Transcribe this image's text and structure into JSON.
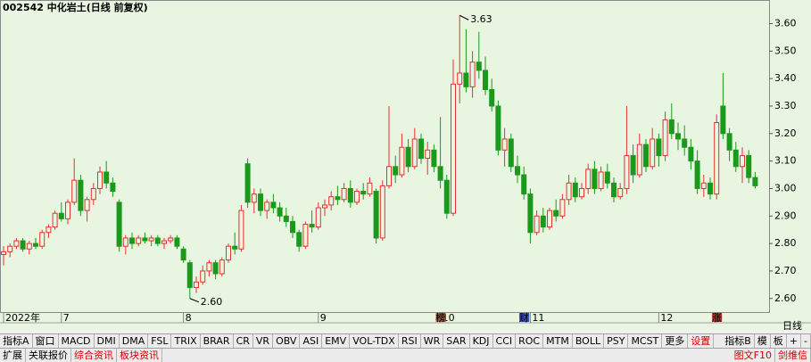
{
  "chart_data": {
    "type": "candlestick",
    "title": "002542 中化岩土(日线 前复权)",
    "period": "日线",
    "categories": [
      "2022年",
      null,
      null,
      null,
      null,
      null,
      null,
      null,
      null,
      "7",
      null,
      null,
      null,
      null,
      null,
      null,
      null,
      null,
      null,
      null,
      null,
      null,
      null,
      null,
      null,
      null,
      null,
      null,
      "8",
      null,
      null,
      null,
      null,
      null,
      null,
      null,
      null,
      null,
      null,
      null,
      null,
      null,
      null,
      null,
      null,
      null,
      null,
      null,
      null,
      "9",
      null,
      null,
      null,
      null,
      null,
      null,
      null,
      null,
      null,
      null,
      null,
      null,
      null,
      null,
      null,
      null,
      null,
      null,
      "10",
      null,
      null,
      null,
      null,
      null,
      null,
      null,
      null,
      null,
      null,
      null,
      null,
      null,
      "11",
      null,
      null,
      null,
      null,
      null,
      null,
      null,
      null,
      null,
      null,
      null,
      null,
      null,
      null,
      null,
      null,
      null,
      null,
      null,
      "12",
      null,
      null,
      null,
      null,
      null,
      null,
      null,
      null,
      null,
      null,
      null,
      null,
      null,
      null,
      null
    ],
    "open": [
      2.76,
      2.77,
      2.79,
      2.81,
      2.78,
      2.8,
      2.79,
      2.84,
      2.86,
      2.91,
      2.89,
      2.95,
      3.03,
      2.92,
      2.96,
      3.0,
      3.06,
      3.02,
      2.95,
      2.79,
      2.82,
      2.8,
      2.82,
      2.81,
      2.82,
      2.8,
      2.81,
      2.82,
      2.78,
      2.73,
      2.64,
      2.66,
      2.7,
      2.73,
      2.69,
      2.74,
      2.79,
      2.78,
      3.09,
      2.95,
      2.98,
      2.92,
      2.95,
      2.93,
      2.9,
      2.88,
      2.84,
      2.79,
      2.87,
      2.86,
      2.93,
      2.94,
      2.97,
      2.96,
      3.0,
      2.95,
      2.99,
      2.98,
      2.99,
      2.82,
      3.01,
      3.08,
      3.05,
      3.15,
      3.08,
      3.18,
      3.11,
      3.14,
      3.08,
      3.03,
      2.91,
      3.38,
      3.42,
      3.37,
      3.46,
      3.43,
      3.36,
      3.3,
      3.14,
      3.18,
      3.08,
      3.05,
      2.98,
      2.84,
      2.9,
      2.86,
      2.92,
      2.9,
      2.96,
      3.02,
      2.97,
      3.0,
      3.07,
      3.0,
      3.06,
      3.02,
      2.97,
      3.0,
      3.12,
      3.05,
      3.16,
      3.08,
      3.18,
      3.12,
      3.25,
      3.2,
      3.18,
      3.15,
      3.1,
      3.0,
      3.02,
      2.98,
      3.3,
      3.2,
      3.14,
      3.08,
      3.12,
      3.04
    ],
    "high": [
      2.79,
      2.8,
      2.82,
      2.82,
      2.81,
      2.82,
      2.85,
      2.87,
      2.92,
      2.95,
      2.96,
      3.11,
      3.05,
      2.97,
      3.02,
      3.08,
      3.1,
      3.04,
      2.96,
      2.83,
      2.84,
      2.83,
      2.84,
      2.83,
      2.83,
      2.82,
      2.83,
      2.83,
      2.79,
      2.74,
      2.68,
      2.72,
      2.74,
      2.74,
      2.75,
      2.8,
      2.84,
      2.94,
      3.11,
      3.0,
      3.0,
      2.96,
      2.98,
      2.95,
      2.93,
      2.9,
      2.85,
      2.88,
      2.92,
      2.95,
      2.96,
      2.99,
      3.01,
      3.02,
      3.03,
      3.0,
      3.02,
      3.04,
      3.0,
      3.03,
      3.3,
      3.12,
      3.2,
      3.18,
      3.22,
      3.2,
      3.17,
      3.16,
      3.26,
      3.05,
      3.47,
      3.63,
      3.58,
      3.5,
      3.57,
      3.48,
      3.4,
      3.32,
      3.22,
      3.2,
      3.12,
      3.08,
      3.0,
      2.92,
      2.93,
      2.93,
      2.96,
      2.98,
      3.05,
      3.04,
      3.02,
      3.09,
      3.1,
      3.08,
      3.09,
      3.04,
      3.02,
      3.3,
      3.16,
      3.2,
      3.18,
      3.22,
      3.2,
      3.28,
      3.31,
      3.24,
      3.23,
      3.18,
      3.14,
      3.05,
      3.04,
      3.27,
      3.42,
      3.22,
      3.17,
      3.15,
      3.14,
      3.06
    ],
    "low": [
      2.72,
      2.75,
      2.78,
      2.77,
      2.76,
      2.78,
      2.78,
      2.82,
      2.85,
      2.88,
      2.87,
      2.94,
      2.9,
      2.88,
      2.94,
      2.98,
      3.0,
      2.97,
      2.77,
      2.76,
      2.78,
      2.79,
      2.8,
      2.79,
      2.79,
      2.78,
      2.8,
      2.78,
      2.73,
      2.6,
      2.62,
      2.65,
      2.68,
      2.67,
      2.68,
      2.73,
      2.76,
      2.77,
      2.93,
      2.91,
      2.9,
      2.89,
      2.91,
      2.88,
      2.86,
      2.82,
      2.77,
      2.78,
      2.84,
      2.85,
      2.9,
      2.92,
      2.94,
      2.95,
      2.93,
      2.94,
      2.96,
      2.97,
      2.8,
      2.81,
      3.0,
      3.02,
      3.04,
      3.06,
      3.07,
      3.09,
      3.05,
      3.06,
      3.0,
      2.89,
      2.9,
      3.31,
      3.35,
      3.33,
      3.4,
      3.34,
      3.28,
      3.12,
      3.08,
      3.06,
      3.02,
      2.96,
      2.8,
      2.83,
      2.84,
      2.85,
      2.88,
      2.89,
      2.94,
      2.95,
      2.96,
      2.98,
      2.98,
      2.99,
      3.0,
      2.95,
      2.96,
      2.98,
      3.02,
      3.04,
      3.06,
      3.07,
      3.08,
      3.1,
      3.18,
      3.14,
      3.12,
      3.07,
      2.98,
      2.97,
      2.96,
      2.96,
      3.18,
      3.1,
      3.06,
      3.02,
      3.02,
      3.0
    ],
    "close": [
      2.77,
      2.79,
      2.81,
      2.78,
      2.8,
      2.79,
      2.84,
      2.86,
      2.91,
      2.89,
      2.95,
      3.03,
      2.92,
      2.96,
      3.0,
      3.06,
      3.02,
      2.99,
      2.79,
      2.82,
      2.8,
      2.82,
      2.81,
      2.82,
      2.8,
      2.81,
      2.82,
      2.79,
      2.74,
      2.64,
      2.66,
      2.7,
      2.73,
      2.69,
      2.74,
      2.79,
      2.78,
      2.92,
      2.95,
      2.98,
      2.92,
      2.95,
      2.93,
      2.9,
      2.88,
      2.84,
      2.79,
      2.87,
      2.86,
      2.93,
      2.94,
      2.97,
      2.96,
      3.0,
      2.95,
      2.99,
      2.98,
      3.02,
      2.82,
      3.01,
      3.08,
      3.05,
      3.15,
      3.08,
      3.18,
      3.11,
      3.14,
      3.08,
      3.03,
      2.91,
      3.38,
      3.42,
      3.37,
      3.46,
      3.43,
      3.36,
      3.3,
      3.14,
      3.18,
      3.08,
      3.05,
      2.98,
      2.84,
      2.9,
      2.86,
      2.92,
      2.9,
      2.96,
      3.02,
      2.97,
      3.0,
      3.07,
      3.0,
      3.06,
      3.02,
      2.97,
      3.0,
      3.12,
      3.05,
      3.16,
      3.08,
      3.18,
      3.12,
      3.25,
      3.2,
      3.18,
      3.15,
      3.1,
      3.0,
      3.02,
      2.98,
      3.24,
      3.2,
      3.14,
      3.08,
      3.12,
      3.04,
      3.01
    ],
    "up_color": "#e83030",
    "down_color": "#1a9a1a",
    "ylim": [
      2.57,
      3.66
    ],
    "yticks": [
      {
        "value": 2.6,
        "label": "2.60"
      },
      {
        "value": 2.7,
        "label": "2.70"
      },
      {
        "value": 2.8,
        "label": "2.80"
      },
      {
        "value": 2.9,
        "label": "2.90"
      },
      {
        "value": 3.0,
        "label": "3.00"
      },
      {
        "value": 3.1,
        "label": "3.10"
      },
      {
        "value": 3.2,
        "label": "3.20"
      },
      {
        "value": 3.3,
        "label": "3.30"
      },
      {
        "value": 3.4,
        "label": "3.40"
      },
      {
        "value": 3.5,
        "label": "3.50"
      },
      {
        "value": 3.6,
        "label": "3.60"
      }
    ],
    "annotations": [
      {
        "index": 71,
        "value": 3.63
      },
      {
        "index": 29,
        "value": 2.6,
        "label": "2.60"
      }
    ],
    "events": [
      {
        "index": 68,
        "label": "榜",
        "color": "#a0522d"
      },
      {
        "index": 81,
        "label": "财",
        "color": "#3050c0"
      },
      {
        "index": 111,
        "label": "涨",
        "color": "#b03020"
      }
    ]
  },
  "toolbar": {
    "tabs": [
      "指标A",
      "窗口",
      "MACD",
      "DMI",
      "DMA",
      "FSL",
      "TRIX",
      "BRAR",
      "CR",
      "VR",
      "OBV",
      "ASI",
      "EMV",
      "VOL-TDX",
      "RSI",
      "WR",
      "SAR",
      "KDJ",
      "CCI",
      "ROC",
      "MTM",
      "BOLL",
      "PSY",
      "MCST",
      "更多",
      "设置"
    ],
    "right": [
      "指标B",
      "模",
      "板",
      "+",
      "-"
    ],
    "bottom_tabs": [
      "扩展",
      "关联报价",
      "综合资讯",
      "板块资讯"
    ],
    "bottom_right": [
      "图文F10",
      "剑维信"
    ]
  }
}
